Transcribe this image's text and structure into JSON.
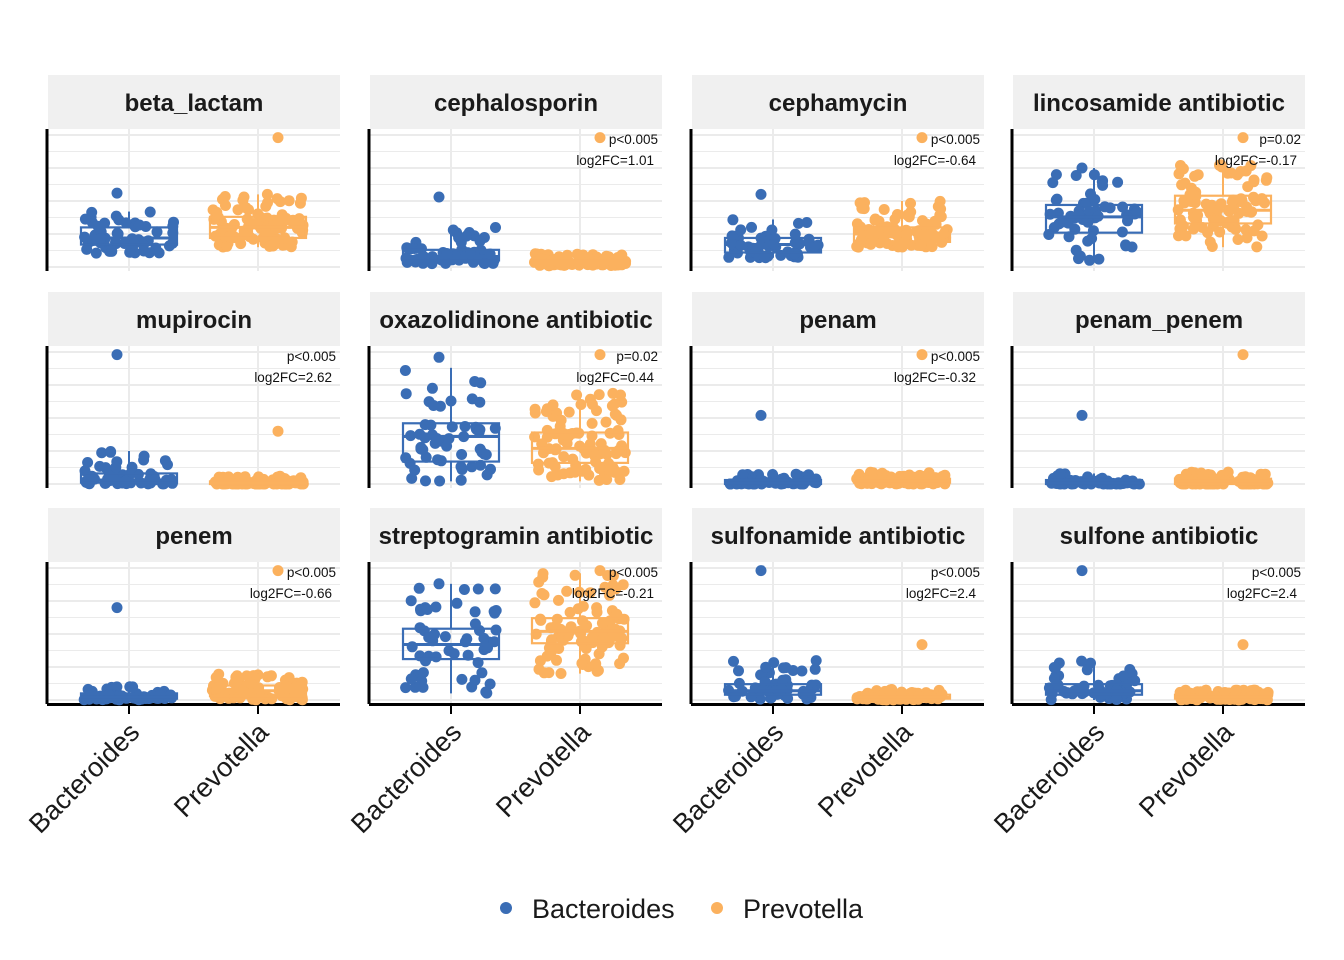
{
  "chart_data": {
    "type": "box-jitter",
    "facet_layout": {
      "rows": 3,
      "cols": 4
    },
    "categories": [
      "Bacteroides",
      "Prevotella"
    ],
    "colors": {
      "Bacteroides": "#3A6DB5",
      "Prevotella": "#FBB15E",
      "strip_bg": "#F0F0F0",
      "grid": "#EBEBEB"
    },
    "y_axis": {
      "tick_labels_shown": false,
      "ylim": [
        0,
        1
      ]
    },
    "legend": {
      "position": "bottom",
      "entries": [
        "Bacteroides",
        "Prevotella"
      ]
    },
    "panels": [
      {
        "title": "beta_lactam",
        "annot": {
          "p": "",
          "fc": ""
        },
        "box": {
          "Bacteroides": [
            0.1,
            0.17,
            0.22,
            0.3,
            0.42
          ],
          "Prevotella": [
            0.15,
            0.22,
            0.3,
            0.38,
            0.55
          ]
        },
        "max": {
          "Bacteroides": 0.56,
          "Prevotella": 0.98
        }
      },
      {
        "title": "cephalosporin",
        "annot": {
          "p": "p<0.005",
          "fc": "log2FC=1.01"
        },
        "box": {
          "Bacteroides": [
            0.02,
            0.05,
            0.08,
            0.13,
            0.3
          ],
          "Prevotella": [
            0.01,
            0.02,
            0.03,
            0.05,
            0.1
          ]
        },
        "max": {
          "Bacteroides": 0.53,
          "Prevotella": 0.98
        }
      },
      {
        "title": "cephamycin",
        "annot": {
          "p": "p<0.005",
          "fc": "log2FC=-0.64"
        },
        "box": {
          "Bacteroides": [
            0.07,
            0.11,
            0.17,
            0.22,
            0.36
          ],
          "Prevotella": [
            0.15,
            0.19,
            0.25,
            0.3,
            0.5
          ]
        },
        "max": {
          "Bacteroides": 0.55,
          "Prevotella": 0.98
        }
      },
      {
        "title": "lincosamide antibiotic",
        "annot": {
          "p": "p=0.02",
          "fc": "log2FC=-0.17"
        },
        "box": {
          "Bacteroides": [
            0.05,
            0.26,
            0.38,
            0.47,
            0.75
          ],
          "Prevotella": [
            0.15,
            0.33,
            0.43,
            0.54,
            0.78
          ]
        },
        "max": {
          "Bacteroides": 0.75,
          "Prevotella": 0.98
        }
      },
      {
        "title": "mupirocin",
        "annot": {
          "p": "p<0.005",
          "fc": "log2FC=2.62"
        },
        "box": {
          "Bacteroides": [
            0.0,
            0.01,
            0.03,
            0.08,
            0.25
          ],
          "Prevotella": [
            0.0,
            0.0,
            0.01,
            0.02,
            0.06
          ]
        },
        "max": {
          "Bacteroides": 0.98,
          "Prevotella": 0.4
        }
      },
      {
        "title": "oxazolidinone antibiotic",
        "annot": {
          "p": "p=0.02",
          "fc": "log2FC=0.44"
        },
        "box": {
          "Bacteroides": [
            0.02,
            0.17,
            0.36,
            0.46,
            0.88
          ],
          "Prevotella": [
            0.02,
            0.16,
            0.27,
            0.39,
            0.7
          ]
        },
        "max": {
          "Bacteroides": 0.96,
          "Prevotella": 0.98
        }
      },
      {
        "title": "penam",
        "annot": {
          "p": "p<0.005",
          "fc": "log2FC=-0.32"
        },
        "box": {
          "Bacteroides": [
            0.0,
            0.0,
            0.01,
            0.03,
            0.08
          ],
          "Prevotella": [
            0.0,
            0.01,
            0.02,
            0.04,
            0.09
          ]
        },
        "max": {
          "Bacteroides": 0.52,
          "Prevotella": 0.98
        }
      },
      {
        "title": "penam_penem",
        "annot": {
          "p": "",
          "fc": ""
        },
        "box": {
          "Bacteroides": [
            0.0,
            0.0,
            0.01,
            0.03,
            0.08
          ],
          "Prevotella": [
            0.0,
            0.0,
            0.02,
            0.04,
            0.09
          ]
        },
        "max": {
          "Bacteroides": 0.52,
          "Prevotella": 0.98
        }
      },
      {
        "title": "penem",
        "annot": {
          "p": "p<0.005",
          "fc": "log2FC=-0.66"
        },
        "box": {
          "Bacteroides": [
            0.0,
            0.01,
            0.02,
            0.05,
            0.1
          ],
          "Prevotella": [
            0.0,
            0.03,
            0.07,
            0.11,
            0.2
          ]
        },
        "max": {
          "Bacteroides": 0.7,
          "Prevotella": 0.98
        }
      },
      {
        "title": "streptogramin antibiotic",
        "annot": {
          "p": "p<0.005",
          "fc": "log2FC=-0.21"
        },
        "box": {
          "Bacteroides": [
            0.05,
            0.31,
            0.42,
            0.54,
            0.88
          ],
          "Prevotella": [
            0.2,
            0.43,
            0.52,
            0.62,
            0.96
          ]
        },
        "max": {
          "Bacteroides": 0.88,
          "Prevotella": 0.98
        }
      },
      {
        "title": "sulfonamide antibiotic",
        "annot": {
          "p": "p<0.005",
          "fc": "log2FC=2.4"
        },
        "box": {
          "Bacteroides": [
            0.0,
            0.04,
            0.07,
            0.12,
            0.3
          ],
          "Prevotella": [
            0.0,
            0.01,
            0.02,
            0.04,
            0.08
          ]
        },
        "max": {
          "Bacteroides": 0.98,
          "Prevotella": 0.42
        }
      },
      {
        "title": "sulfone antibiotic",
        "annot": {
          "p": "p<0.005",
          "fc": "log2FC=2.4"
        },
        "box": {
          "Bacteroides": [
            0.0,
            0.04,
            0.07,
            0.12,
            0.3
          ],
          "Prevotella": [
            0.0,
            0.01,
            0.02,
            0.04,
            0.08
          ]
        },
        "max": {
          "Bacteroides": 0.98,
          "Prevotella": 0.42
        }
      }
    ]
  }
}
